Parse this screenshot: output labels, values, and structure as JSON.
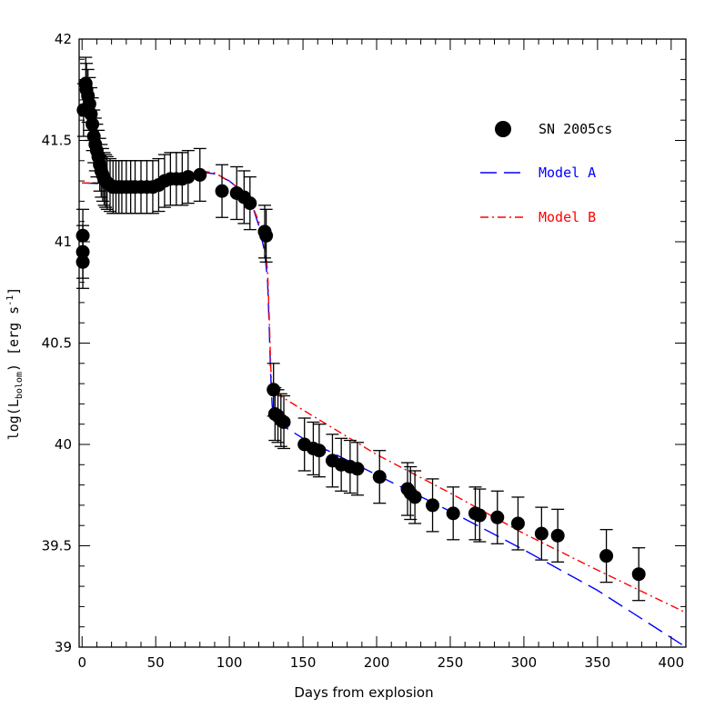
{
  "chart_data": {
    "type": "scatter",
    "xlabel": "Days from explosion",
    "ylabel_main": "log(L",
    "ylabel_sub": "bolom",
    "ylabel_rest": ") [erg s",
    "ylabel_sup": "-1",
    "ylabel_end": "]",
    "xlim": [
      -2,
      410
    ],
    "ylim": [
      39,
      42
    ],
    "xticks": [
      0,
      50,
      100,
      150,
      200,
      250,
      300,
      350,
      400
    ],
    "xtick_labels": [
      "0",
      "50",
      "100",
      "150",
      "200",
      "250",
      "300",
      "350",
      "400"
    ],
    "yticks": [
      39,
      39.5,
      40,
      40.5,
      41,
      41.5,
      42
    ],
    "ytick_labels": [
      "39",
      "39.5",
      "40",
      "40.5",
      "41",
      "41.5",
      "42"
    ],
    "grid": false,
    "legend_position": "top-right",
    "colors": {
      "data": "#000000",
      "model_a": "#0000ff",
      "model_b": "#ff0000"
    },
    "series": [
      {
        "name": "SN 2005cs",
        "kind": "points",
        "points": [
          [
            0.5,
            40.9,
            0.13
          ],
          [
            0.5,
            40.95,
            0.13
          ],
          [
            0.5,
            41.03,
            0.13
          ],
          [
            1,
            41.65,
            0.13
          ],
          [
            2.5,
            41.78,
            0.13
          ],
          [
            3,
            41.75,
            0.13
          ],
          [
            4,
            41.72,
            0.13
          ],
          [
            5,
            41.68,
            0.13
          ],
          [
            6,
            41.63,
            0.13
          ],
          [
            7,
            41.58,
            0.13
          ],
          [
            8,
            41.52,
            0.13
          ],
          [
            9,
            41.48,
            0.13
          ],
          [
            10,
            41.45,
            0.13
          ],
          [
            11,
            41.42,
            0.13
          ],
          [
            12,
            41.38,
            0.13
          ],
          [
            13,
            41.35,
            0.13
          ],
          [
            14,
            41.33,
            0.13
          ],
          [
            15,
            41.31,
            0.13
          ],
          [
            16,
            41.3,
            0.13
          ],
          [
            17,
            41.29,
            0.13
          ],
          [
            19,
            41.28,
            0.13
          ],
          [
            21,
            41.27,
            0.13
          ],
          [
            23,
            41.27,
            0.13
          ],
          [
            25,
            41.27,
            0.13
          ],
          [
            27,
            41.27,
            0.13
          ],
          [
            30,
            41.27,
            0.13
          ],
          [
            33,
            41.27,
            0.13
          ],
          [
            36,
            41.27,
            0.13
          ],
          [
            40,
            41.27,
            0.13
          ],
          [
            44,
            41.27,
            0.13
          ],
          [
            48,
            41.27,
            0.13
          ],
          [
            52,
            41.28,
            0.13
          ],
          [
            56,
            41.3,
            0.13
          ],
          [
            60,
            41.31,
            0.13
          ],
          [
            64,
            41.31,
            0.13
          ],
          [
            68,
            41.31,
            0.13
          ],
          [
            72,
            41.32,
            0.13
          ],
          [
            80,
            41.33,
            0.13
          ],
          [
            95,
            41.25,
            0.13
          ],
          [
            105,
            41.24,
            0.13
          ],
          [
            110,
            41.22,
            0.13
          ],
          [
            114,
            41.19,
            0.13
          ],
          [
            124,
            41.05,
            0.13
          ],
          [
            125,
            41.03,
            0.13
          ],
          [
            130,
            40.27,
            0.13
          ],
          [
            131,
            40.15,
            0.13
          ],
          [
            133,
            40.14,
            0.13
          ],
          [
            135,
            40.12,
            0.13
          ],
          [
            137,
            40.11,
            0.13
          ],
          [
            151,
            40.0,
            0.13
          ],
          [
            157,
            39.98,
            0.13
          ],
          [
            161,
            39.97,
            0.13
          ],
          [
            170,
            39.92,
            0.13
          ],
          [
            176,
            39.9,
            0.13
          ],
          [
            182,
            39.89,
            0.13
          ],
          [
            187,
            39.88,
            0.13
          ],
          [
            202,
            39.84,
            0.13
          ],
          [
            221,
            39.78,
            0.13
          ],
          [
            223,
            39.76,
            0.13
          ],
          [
            226,
            39.74,
            0.13
          ],
          [
            238,
            39.7,
            0.13
          ],
          [
            252,
            39.66,
            0.13
          ],
          [
            267,
            39.66,
            0.13
          ],
          [
            270,
            39.65,
            0.13
          ],
          [
            282,
            39.64,
            0.13
          ],
          [
            296,
            39.61,
            0.13
          ],
          [
            312,
            39.56,
            0.13
          ],
          [
            323,
            39.55,
            0.13
          ],
          [
            356,
            39.45,
            0.13
          ],
          [
            378,
            39.36,
            0.13
          ]
        ]
      },
      {
        "name": "Model A",
        "kind": "line",
        "dash": "long-dash",
        "points": [
          [
            0,
            41.29
          ],
          [
            20,
            41.285
          ],
          [
            50,
            41.29
          ],
          [
            60,
            41.31
          ],
          [
            70,
            41.33
          ],
          [
            80,
            41.345
          ],
          [
            90,
            41.335
          ],
          [
            100,
            41.3
          ],
          [
            110,
            41.24
          ],
          [
            116,
            41.17
          ],
          [
            120,
            41.08
          ],
          [
            124,
            40.95
          ],
          [
            126,
            40.8
          ],
          [
            127,
            40.6
          ],
          [
            128,
            40.35
          ],
          [
            129,
            40.2
          ],
          [
            130,
            40.12
          ],
          [
            150,
            40.03
          ],
          [
            200,
            39.85
          ],
          [
            250,
            39.67
          ],
          [
            300,
            39.48
          ],
          [
            350,
            39.28
          ],
          [
            410,
            39.0
          ]
        ]
      },
      {
        "name": "Model B",
        "kind": "line",
        "dash": "dash-dot",
        "points": [
          [
            0,
            41.29
          ],
          [
            20,
            41.29
          ],
          [
            50,
            41.3
          ],
          [
            60,
            41.32
          ],
          [
            70,
            41.34
          ],
          [
            80,
            41.35
          ],
          [
            90,
            41.34
          ],
          [
            100,
            41.3
          ],
          [
            110,
            41.24
          ],
          [
            116,
            41.17
          ],
          [
            120,
            41.1
          ],
          [
            124,
            41.0
          ],
          [
            126,
            40.85
          ],
          [
            127,
            40.65
          ],
          [
            128,
            40.4
          ],
          [
            129,
            40.25
          ],
          [
            130,
            40.26
          ],
          [
            150,
            40.17
          ],
          [
            200,
            39.95
          ],
          [
            250,
            39.76
          ],
          [
            300,
            39.56
          ],
          [
            350,
            39.38
          ],
          [
            410,
            39.17
          ]
        ]
      }
    ],
    "legend": [
      {
        "label": "SN 2005cs",
        "marker": "dot"
      },
      {
        "label": "Model A",
        "marker": "long-dash"
      },
      {
        "label": "Model B",
        "marker": "dash-dot"
      }
    ]
  }
}
